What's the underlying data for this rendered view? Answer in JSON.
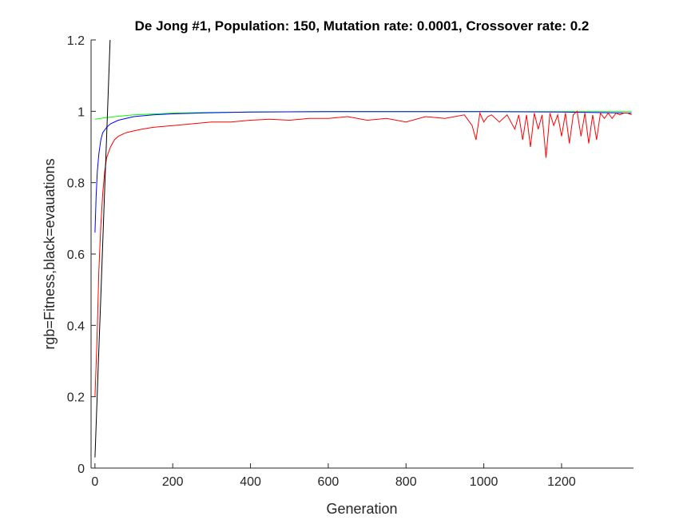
{
  "chart_data": {
    "type": "line",
    "title": "De Jong #1, Population: 150, Mutation rate: 0.0001, Crossover rate: 0.2",
    "xlabel": "Generation",
    "ylabel": "rgb=Fitness,black=evauations",
    "xlim": [
      -10,
      1385
    ],
    "ylim": [
      0,
      1.2
    ],
    "xticks": [
      "0",
      "200",
      "400",
      "600",
      "800",
      "1000",
      "1200"
    ],
    "xtick_values": [
      0,
      200,
      400,
      600,
      800,
      1000,
      1200
    ],
    "yticks": [
      "0",
      "0.2",
      "0.4",
      "0.6",
      "0.8",
      "1",
      "1.2"
    ],
    "ytick_values": [
      0,
      0.2,
      0.4,
      0.6,
      0.8,
      1.0,
      1.2
    ],
    "grid": false,
    "series": [
      {
        "color": "#00ff00",
        "x": [
          0,
          20,
          50,
          100,
          200,
          300,
          400,
          600,
          800,
          1000,
          1200,
          1380
        ],
        "y": [
          0.978,
          0.981,
          0.985,
          0.99,
          0.995,
          0.997,
          0.998,
          0.999,
          0.999,
          0.999,
          0.999,
          0.999
        ]
      },
      {
        "color": "#0000ff",
        "x": [
          0,
          3,
          6,
          10,
          15,
          20,
          30,
          40,
          60,
          80,
          100,
          150,
          200,
          300,
          400,
          600,
          800,
          1000,
          1200,
          1380
        ],
        "y": [
          0.66,
          0.76,
          0.83,
          0.88,
          0.92,
          0.94,
          0.955,
          0.965,
          0.975,
          0.98,
          0.985,
          0.99,
          0.993,
          0.996,
          0.998,
          0.999,
          0.999,
          0.999,
          0.998,
          0.995
        ]
      },
      {
        "color": "#ff0000",
        "x": [
          0,
          5,
          10,
          15,
          20,
          25,
          30,
          40,
          50,
          60,
          80,
          100,
          120,
          150,
          200,
          250,
          300,
          350,
          400,
          450,
          500,
          550,
          600,
          650,
          700,
          750,
          800,
          850,
          900,
          950,
          970,
          980,
          990,
          1000,
          1010,
          1020,
          1040,
          1060,
          1080,
          1090,
          1100,
          1110,
          1120,
          1130,
          1140,
          1150,
          1160,
          1170,
          1180,
          1190,
          1200,
          1210,
          1220,
          1230,
          1240,
          1250,
          1260,
          1270,
          1280,
          1290,
          1300,
          1310,
          1320,
          1330,
          1340,
          1350,
          1360,
          1370,
          1380
        ],
        "y": [
          0.2,
          0.35,
          0.55,
          0.68,
          0.77,
          0.83,
          0.87,
          0.9,
          0.92,
          0.93,
          0.94,
          0.945,
          0.95,
          0.955,
          0.96,
          0.965,
          0.97,
          0.97,
          0.975,
          0.978,
          0.975,
          0.98,
          0.98,
          0.985,
          0.975,
          0.98,
          0.97,
          0.985,
          0.98,
          0.99,
          0.96,
          0.92,
          0.995,
          0.97,
          0.985,
          0.99,
          0.97,
          0.99,
          0.95,
          0.99,
          0.92,
          0.99,
          0.9,
          0.995,
          0.95,
          0.99,
          0.87,
          0.995,
          0.96,
          0.99,
          0.93,
          0.995,
          0.91,
          0.99,
          1.0,
          0.93,
          0.995,
          0.91,
          0.99,
          0.92,
          0.995,
          0.98,
          0.995,
          0.98,
          0.995,
          0.99,
          0.995,
          0.995,
          0.99
        ]
      },
      {
        "color": "#000000",
        "x": [
          0,
          5,
          10,
          15,
          20,
          25,
          30,
          35,
          40
        ],
        "y": [
          0.03,
          0.18,
          0.33,
          0.48,
          0.63,
          0.78,
          0.93,
          1.08,
          1.23
        ]
      }
    ]
  }
}
